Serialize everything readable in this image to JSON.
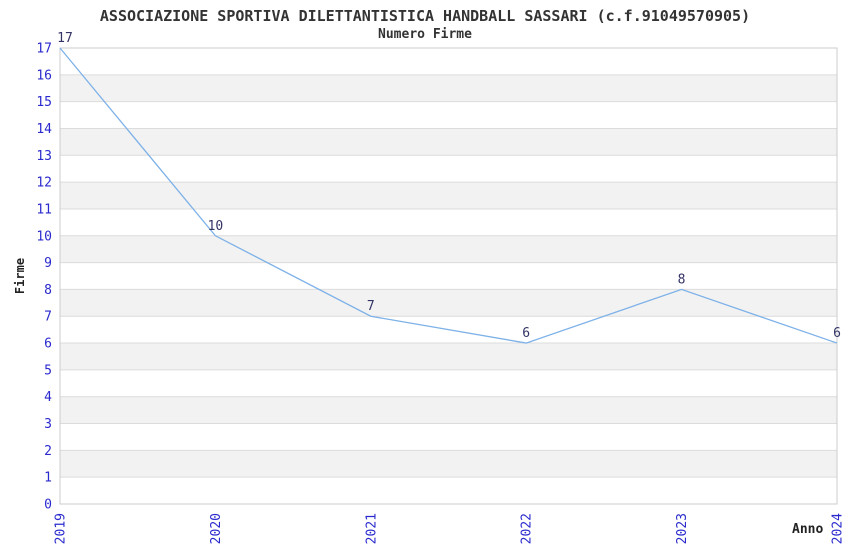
{
  "chart_data": {
    "type": "line",
    "title": "ASSOCIAZIONE SPORTIVA DILETTANTISTICA HANDBALL SASSARI (c.f.91049570905)",
    "subtitle": "Numero Firme",
    "xlabel": "Anno",
    "ylabel": "Firme",
    "categories": [
      "2019",
      "2020",
      "2021",
      "2022",
      "2023",
      "2024"
    ],
    "series": [
      {
        "name": "Numero Firme",
        "values": [
          17,
          10,
          7,
          6,
          8,
          6
        ]
      }
    ],
    "ylim": [
      0,
      17
    ],
    "ytick_step": 1,
    "grid": "horizontal",
    "banded_background": true,
    "legend": "none",
    "x_tick_rotation": 90,
    "colors": {
      "line": "#7db1e8",
      "tick_label": "#2a2ace",
      "data_label": "#333366",
      "band": "#f2f2f2",
      "grid": "#dcdcdc",
      "border": "#cccccc",
      "title": "#333333",
      "axis_label": "#222222"
    }
  }
}
